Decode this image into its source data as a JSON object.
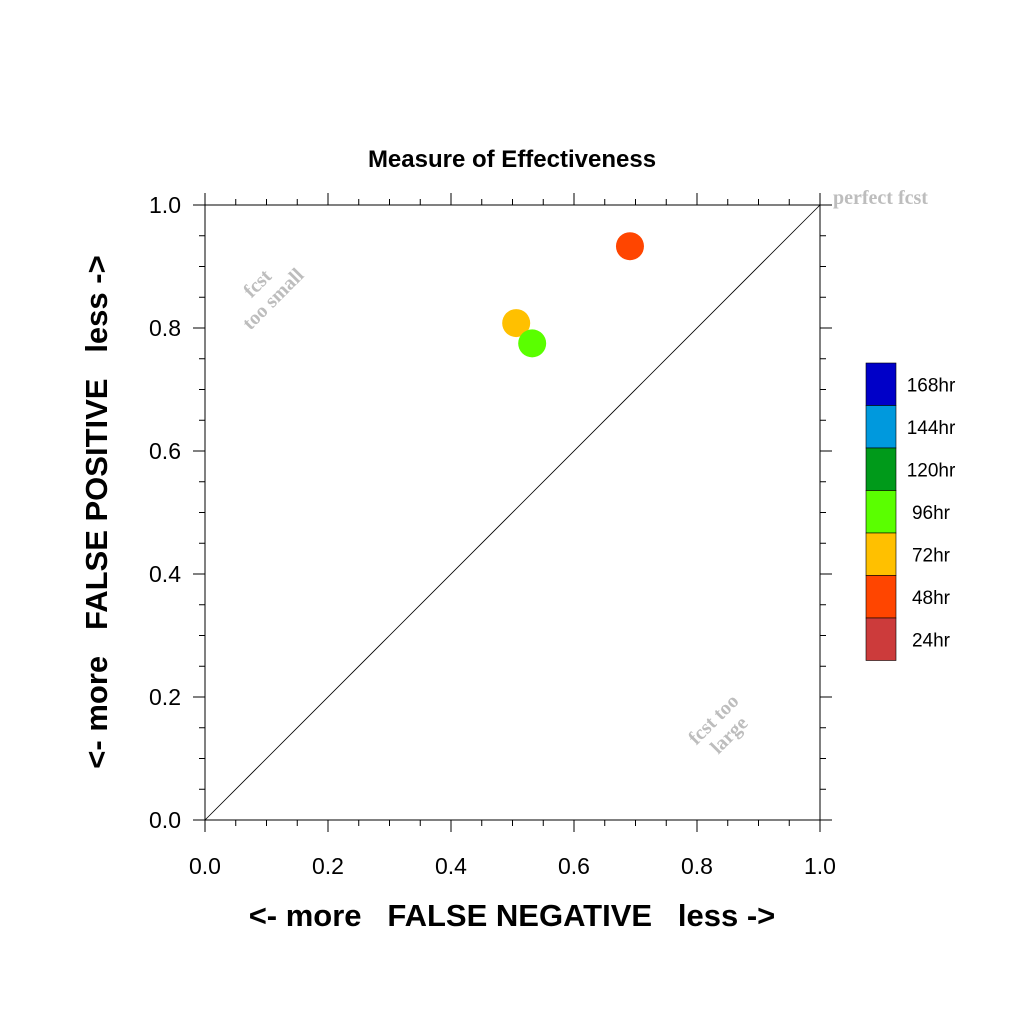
{
  "chart_data": {
    "type": "scatter",
    "title": "Measure of Effectiveness",
    "xlabel": "<- more   FALSE NEGATIVE   less ->",
    "ylabel": "<- more   FALSE POSITIVE   less ->",
    "xlim": [
      0.0,
      1.0
    ],
    "ylim": [
      0.0,
      1.0
    ],
    "x_tick_labels": [
      "0.0",
      "0.2",
      "0.4",
      "0.6",
      "0.8",
      "1.0"
    ],
    "y_tick_labels": [
      "0.0",
      "0.2",
      "0.4",
      "0.6",
      "0.8",
      "1.0"
    ],
    "x_ticks": [
      0.0,
      0.2,
      0.4,
      0.6,
      0.8,
      1.0
    ],
    "y_ticks": [
      0.0,
      0.2,
      0.4,
      0.6,
      0.8,
      1.0
    ],
    "grid": false,
    "reference_line": {
      "from": [
        0,
        0
      ],
      "to": [
        1,
        1
      ]
    },
    "annotations": {
      "perfect": "perfect fcst",
      "too_small": [
        "fcst",
        "too small"
      ],
      "too_large": [
        "fcst too",
        "large"
      ]
    },
    "legend": {
      "placement": "right",
      "entries": [
        {
          "label": "168hr",
          "color": "#0000c8"
        },
        {
          "label": "144hr",
          "color": "#0099dd"
        },
        {
          "label": "120hr",
          "color": "#009a1a"
        },
        {
          "label": "96hr",
          "color": "#5aff00"
        },
        {
          "label": "72hr",
          "color": "#ffc000"
        },
        {
          "label": "48hr",
          "color": "#ff4500"
        },
        {
          "label": "24hr",
          "color": "#cc3b3b"
        }
      ]
    },
    "series": [
      {
        "name": "48hr",
        "color": "#ff4500",
        "x": [
          0.691
        ],
        "y": [
          0.933
        ]
      },
      {
        "name": "72hr",
        "color": "#ffc000",
        "x": [
          0.506
        ],
        "y": [
          0.808
        ]
      },
      {
        "name": "96hr",
        "color": "#5aff00",
        "x": [
          0.532
        ],
        "y": [
          0.775
        ]
      }
    ]
  }
}
